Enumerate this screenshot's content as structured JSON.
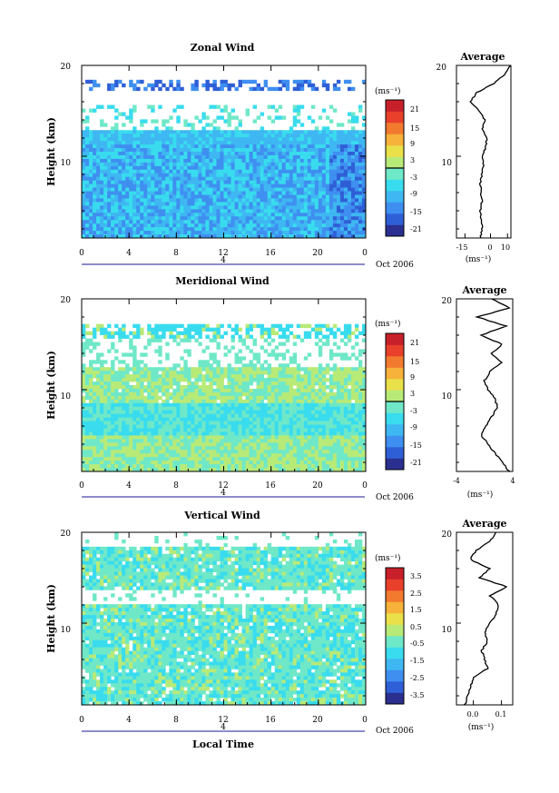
{
  "colors": {
    "scale": [
      "#2b2f8f",
      "#2f5fd6",
      "#3f8ff0",
      "#3fb7f2",
      "#39dcee",
      "#6fe8c8",
      "#b8ea78",
      "#e9e04a",
      "#f6b23a",
      "#f27a2f",
      "#e8402a",
      "#c8202a"
    ],
    "axis": "#000000",
    "date_line": "#1a1a9a"
  },
  "chart_data": [
    {
      "type": "heatmap",
      "title": "Zonal Wind",
      "ylabel": "Height (km)",
      "xlabel": "",
      "x_ticks": [
        "0",
        "4",
        "8",
        "12",
        "16",
        "20",
        "0"
      ],
      "x_range": [
        0,
        24
      ],
      "y_ticks": [
        "20",
        "10"
      ],
      "y_range": [
        1,
        20
      ],
      "date_marker": "4",
      "date_label": "Oct 2006",
      "colorbar": {
        "unit": "(ms⁻¹)",
        "ticks": [
          "21",
          "15",
          "9",
          "3",
          "-3",
          "-9",
          "-15",
          "-21"
        ],
        "range": [
          -24,
          24
        ],
        "zero_line": true
      },
      "profile": {
        "title": "Average",
        "x_ticks": [
          "-15",
          "0",
          "10"
        ],
        "x_range": [
          -20,
          12
        ],
        "y_ticks": [
          "20",
          "10"
        ],
        "unit": "(ms⁻¹)",
        "heights": [
          1,
          2,
          3,
          4,
          5,
          6,
          7,
          8,
          9,
          10,
          11,
          12,
          13,
          14,
          15,
          16,
          17,
          18,
          19,
          20
        ],
        "values": [
          -6,
          -5,
          -5.5,
          -6,
          -5,
          -5.5,
          -6,
          -5,
          -4,
          -4.5,
          -3,
          -2,
          -5,
          -3,
          -7,
          -12,
          -8,
          2,
          8,
          12
        ]
      }
    },
    {
      "type": "heatmap",
      "title": "Meridional Wind",
      "ylabel": "Height (km)",
      "xlabel": "",
      "x_ticks": [
        "0",
        "4",
        "8",
        "12",
        "16",
        "20",
        "0"
      ],
      "x_range": [
        0,
        24
      ],
      "y_ticks": [
        "20",
        "10"
      ],
      "y_range": [
        1,
        20
      ],
      "date_marker": "4",
      "date_label": "Oct 2006",
      "colorbar": {
        "unit": "(ms⁻¹)",
        "ticks": [
          "21",
          "15",
          "9",
          "3",
          "-3",
          "-9",
          "-15",
          "-21"
        ],
        "range": [
          -24,
          24
        ],
        "zero_line": true
      },
      "profile": {
        "title": "Average",
        "x_ticks": [
          "-4",
          "4"
        ],
        "x_range": [
          -4,
          4
        ],
        "y_ticks": [
          "20",
          "10"
        ],
        "unit": "(ms⁻¹)",
        "heights": [
          1,
          2,
          3,
          4,
          5,
          6,
          7,
          8,
          9,
          10,
          11,
          12,
          13,
          14,
          15,
          16,
          17,
          18,
          19,
          20
        ],
        "values": [
          3.5,
          2.5,
          1.5,
          0.5,
          -0.5,
          0.2,
          1.0,
          1.8,
          1.5,
          0.5,
          0.0,
          0.8,
          2.5,
          1.0,
          2.5,
          -0.5,
          3.0,
          -1.0,
          3.5,
          1.0
        ]
      }
    },
    {
      "type": "heatmap",
      "title": "Vertical Wind",
      "ylabel": "Height (km)",
      "xlabel": "Local Time",
      "x_ticks": [
        "0",
        "4",
        "8",
        "12",
        "16",
        "20",
        "0"
      ],
      "x_range": [
        0,
        24
      ],
      "y_ticks": [
        "20",
        "10"
      ],
      "y_range": [
        1,
        20
      ],
      "date_marker": "4",
      "date_label": "Oct 2006",
      "colorbar": {
        "unit": "(ms⁻¹)",
        "ticks": [
          "3.5",
          "2.5",
          "1.5",
          "0.5",
          "-0.5",
          "-1.5",
          "-2.5",
          "-3.5"
        ],
        "range": [
          -4,
          4
        ],
        "zero_line": false
      },
      "profile": {
        "title": "Average",
        "x_ticks": [
          "0.0",
          "0.1"
        ],
        "x_range": [
          -0.06,
          0.14
        ],
        "y_ticks": [
          "20",
          "10"
        ],
        "unit": "(ms⁻¹)",
        "heights": [
          1,
          2,
          3,
          4,
          5,
          6,
          7,
          8,
          9,
          10,
          11,
          12,
          13,
          14,
          15,
          16,
          17,
          18,
          19,
          20
        ],
        "values": [
          -0.03,
          -0.02,
          -0.01,
          0.0,
          0.05,
          0.04,
          0.03,
          0.05,
          0.04,
          0.06,
          0.08,
          0.09,
          0.06,
          0.12,
          0.02,
          0.06,
          -0.01,
          0.01,
          0.06,
          0.08
        ]
      }
    }
  ]
}
